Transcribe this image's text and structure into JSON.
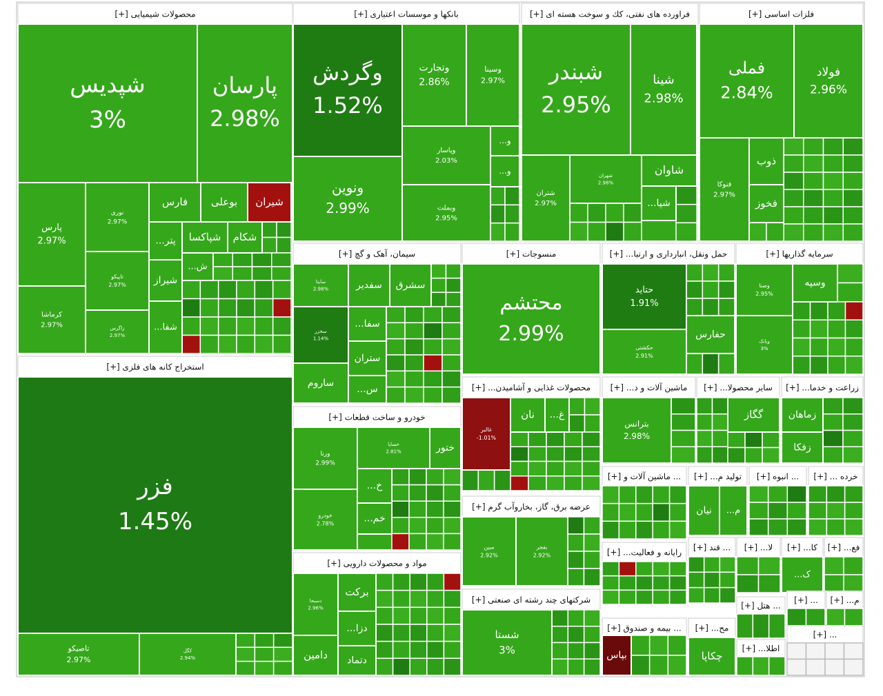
{
  "chart_data": {
    "type": "treemap",
    "sectors": [
      {
        "title": "محصولات شیمیایی [+]",
        "tiles": [
          {
            "name": "شپدیس",
            "value": 3,
            "value_label": "3%",
            "color": "#35a71b"
          },
          {
            "name": "پارسان",
            "value": 2.98,
            "value_label": "2.98%",
            "color": "#35a71b"
          },
          {
            "name": "پارس",
            "value": 2.97,
            "value_label": "2.97%",
            "color": "#35a71b"
          },
          {
            "name": "کرماشا",
            "value": 2.97,
            "value_label": "2.97%",
            "color": "#35a71b"
          },
          {
            "name": "نوری",
            "value": 2.97,
            "value_label": "2.97%",
            "color": "#35a71b"
          },
          {
            "name": "تاپیکو",
            "value": 2.97,
            "value_label": "2.97%",
            "color": "#35a71b"
          },
          {
            "name": "زاگرس",
            "value": 2.97,
            "value_label": "2.97%",
            "color": "#35a71b"
          },
          {
            "name": "فارس",
            "color": "#35a71b"
          },
          {
            "name": "بوعلی",
            "color": "#35a71b"
          },
          {
            "name": "شیران",
            "color": "#a3110f"
          },
          {
            "name": "پتر...",
            "color": "#35a71b"
          },
          {
            "name": "شپاکسا",
            "color": "#35a71b"
          },
          {
            "name": "شکام",
            "color": "#35a71b"
          },
          {
            "name": "شیراز",
            "color": "#35a71b"
          },
          {
            "name": "شفا...",
            "color": "#35a71b"
          },
          {
            "name": "ش...",
            "color": "#35a71b"
          }
        ]
      },
      {
        "title": "بانکها و موسسات اعتباری [+]",
        "tiles": [
          {
            "name": "وگردش",
            "value": 1.52,
            "value_label": "1.52%",
            "color": "#1f7c12"
          },
          {
            "name": "وتجارت",
            "value": 2.86,
            "value_label": "2.86%",
            "color": "#35a71b"
          },
          {
            "name": "وسینا",
            "value": 2.97,
            "value_label": "2.97%",
            "color": "#35a71b"
          },
          {
            "name": "ونوین",
            "value": 2.99,
            "value_label": "2.99%",
            "color": "#35a71b"
          },
          {
            "name": "وپاسار",
            "value": 2.03,
            "value_label": "2.03%",
            "color": "#35a71b"
          },
          {
            "name": "وبملت",
            "value": 2.95,
            "value_label": "2.95%",
            "color": "#35a71b"
          },
          {
            "name": "و...",
            "color": "#35a71b"
          },
          {
            "name": "و...",
            "color": "#35a71b"
          }
        ]
      },
      {
        "title": "فراورده های نفتی، کك و سوخت هسته ای [+]",
        "tiles": [
          {
            "name": "شبندر",
            "value": 2.95,
            "value_label": "2.95%",
            "color": "#35a71b"
          },
          {
            "name": "شینا",
            "value": 2.98,
            "value_label": "2.98%",
            "color": "#35a71b"
          },
          {
            "name": "شتران",
            "value": 2.97,
            "value_label": "2.97%",
            "color": "#35a71b"
          },
          {
            "name": "شهران",
            "value": 2.98,
            "value_label": "2.98%",
            "color": "#35a71b"
          },
          {
            "name": "شاوان",
            "color": "#35a71b"
          },
          {
            "name": "شپا...",
            "color": "#35a71b"
          }
        ]
      },
      {
        "title": "فلزات اساسی [+]",
        "tiles": [
          {
            "name": "فملی",
            "value": 2.84,
            "value_label": "2.84%",
            "color": "#35a71b"
          },
          {
            "name": "فولاد",
            "value": 2.96,
            "value_label": "2.96%",
            "color": "#35a71b"
          },
          {
            "name": "فنوکا",
            "value": 2.97,
            "value_label": "2.97%",
            "color": "#35a71b"
          },
          {
            "name": "ذوب",
            "color": "#35a71b"
          },
          {
            "name": "فخوز",
            "color": "#35a71b"
          }
        ]
      },
      {
        "title": "استخراج کانه های فلزی [+]",
        "tiles": [
          {
            "name": "فزر",
            "value": 1.45,
            "value_label": "1.45%",
            "color": "#1e7a14"
          },
          {
            "name": "تاصیکو",
            "value": 2.97,
            "value_label": "2.97%",
            "color": "#35a71b"
          },
          {
            "name": "کگل",
            "value": 2.94,
            "value_label": "2.94%",
            "color": "#35a71b"
          }
        ]
      },
      {
        "title": "سیمان، آهک و گچ [+]",
        "tiles": [
          {
            "name": "ساینا",
            "value": 2.98,
            "value_label": "2.98%",
            "color": "#35a71b"
          },
          {
            "name": "سفدیر",
            "color": "#35a71b"
          },
          {
            "name": "سشرق",
            "color": "#35a71b"
          },
          {
            "name": "سخزر",
            "value": 1.14,
            "value_label": "1.14%",
            "color": "#1f7c12"
          },
          {
            "name": "سفا...",
            "color": "#35a71b"
          },
          {
            "name": "ستران",
            "color": "#35a71b"
          },
          {
            "name": "ساروم",
            "color": "#35a71b"
          },
          {
            "name": "س...",
            "color": "#35a71b"
          }
        ]
      },
      {
        "title": "منسوجات [+]",
        "tiles": [
          {
            "name": "محتشم",
            "value": 2.99,
            "value_label": "2.99%",
            "color": "#35a71b"
          }
        ]
      },
      {
        "title": "حمل ونقل، انبارداری و ارتبا... [+]",
        "tiles": [
          {
            "name": "حتاید",
            "value": 1.91,
            "value_label": "1.91%",
            "color": "#1f7c12"
          },
          {
            "name": "حکشتی",
            "value": 2.91,
            "value_label": "2.91%",
            "color": "#35a71b"
          },
          {
            "name": "حفارس",
            "color": "#35a71b"
          }
        ]
      },
      {
        "title": "سرمایه گذاریها [+]",
        "tiles": [
          {
            "name": "وصنا",
            "value": 2.95,
            "value_label": "2.95%",
            "color": "#35a71b"
          },
          {
            "name": "وسپه",
            "color": "#35a71b"
          },
          {
            "name": "وبانک",
            "value": 3,
            "value_label": "3%",
            "color": "#35a71b"
          }
        ]
      },
      {
        "title": "خودرو و ساخت قطعات [+]",
        "tiles": [
          {
            "name": "ورنا",
            "value": 2.99,
            "value_label": "2.99%",
            "color": "#35a71b"
          },
          {
            "name": "خساپا",
            "value": 2.81,
            "value_label": "2.81%",
            "color": "#35a71b"
          },
          {
            "name": "ختور",
            "color": "#35a71b"
          },
          {
            "name": "خودرو",
            "value": 2.78,
            "value_label": "2.78%",
            "color": "#35a71b"
          },
          {
            "name": "خ...",
            "color": "#35a71b"
          },
          {
            "name": "خم...",
            "color": "#35a71b"
          }
        ]
      },
      {
        "title": "مواد و محصولات دارویی [+]",
        "tiles": [
          {
            "name": "دسبحا",
            "value": 2.96,
            "value_label": "2.96%",
            "color": "#35a71b"
          },
          {
            "name": "برکت",
            "color": "#35a71b"
          },
          {
            "name": "دزا...",
            "color": "#35a71b"
          },
          {
            "name": "دامین",
            "color": "#35a71b"
          },
          {
            "name": "دتماد",
            "color": "#35a71b"
          }
        ]
      },
      {
        "title": "محصولات غذایی و آشامیدن... [+]",
        "tiles": [
          {
            "name": "غالبر",
            "value": -1.01,
            "value_label": "-1.01%",
            "color": "#8e1010"
          },
          {
            "name": "نان",
            "color": "#35a71b"
          },
          {
            "name": "غ...",
            "color": "#35a71b"
          }
        ]
      },
      {
        "title": "ماشین آلات و د... [+]",
        "tiles": [
          {
            "name": "بترانس",
            "value": 2.98,
            "value_label": "2.98%",
            "color": "#35a71b"
          }
        ]
      },
      {
        "title": "سایر محصولا... [+]",
        "tiles": [
          {
            "name": "گگاز",
            "color": "#35a71b"
          }
        ]
      },
      {
        "title": "زراعت و خدما... [+]",
        "tiles": [
          {
            "name": "زماهان",
            "color": "#35a71b"
          },
          {
            "name": "زفکا",
            "color": "#35a71b"
          }
        ]
      },
      {
        "title": "عرضه برق، گاز، بخاروآب گرم [+]",
        "tiles": [
          {
            "name": "مبین",
            "value": 2.92,
            "value_label": "2.92%",
            "color": "#35a71b"
          },
          {
            "name": "بفجر",
            "value": 2.92,
            "value_label": "2.92%",
            "color": "#35a71b"
          }
        ]
      },
      {
        "title": "شرکتهای چند رشته ای صنعتی [+]",
        "tiles": [
          {
            "name": "شستا",
            "value": 3,
            "value_label": "3%",
            "color": "#35a71b"
          }
        ]
      },
      {
        "title": "... ماشین آلات و [+]",
        "tiles": []
      },
      {
        "title": "تولید م... [+]",
        "tiles": [
          {
            "name": "نیان",
            "color": "#35a71b"
          },
          {
            "name": "م...",
            "color": "#35a71b"
          }
        ]
      },
      {
        "title": "... انبوه [+]",
        "tiles": []
      },
      {
        "title": "خرده ... [+]",
        "tiles": []
      },
      {
        "title": "رایانه و فعالیت... [+]",
        "tiles": []
      },
      {
        "title": "... قند [+]",
        "tiles": []
      },
      {
        "title": "لا... [+]",
        "tiles": []
      },
      {
        "title": "کا... [+]",
        "tiles": [
          {
            "name": "ک...",
            "color": "#35a71b"
          }
        ]
      },
      {
        "title": "فع... [+]",
        "tiles": []
      },
      {
        "title": "... بیمه و صندوق [+]",
        "tiles": [
          {
            "name": "بپاس",
            "color": "#6a0a0a"
          }
        ]
      },
      {
        "title": "مح... [+]",
        "tiles": [
          {
            "name": "چکاپا",
            "color": "#35a71b"
          }
        ]
      },
      {
        "title": "... هتل [+]",
        "tiles": []
      },
      {
        "title": "... [+]",
        "tiles": []
      },
      {
        "title": "م... [+]",
        "tiles": []
      },
      {
        "title": "اطلا... [+]",
        "tiles": []
      },
      {
        "title": "... [+]",
        "tiles": []
      }
    ]
  }
}
